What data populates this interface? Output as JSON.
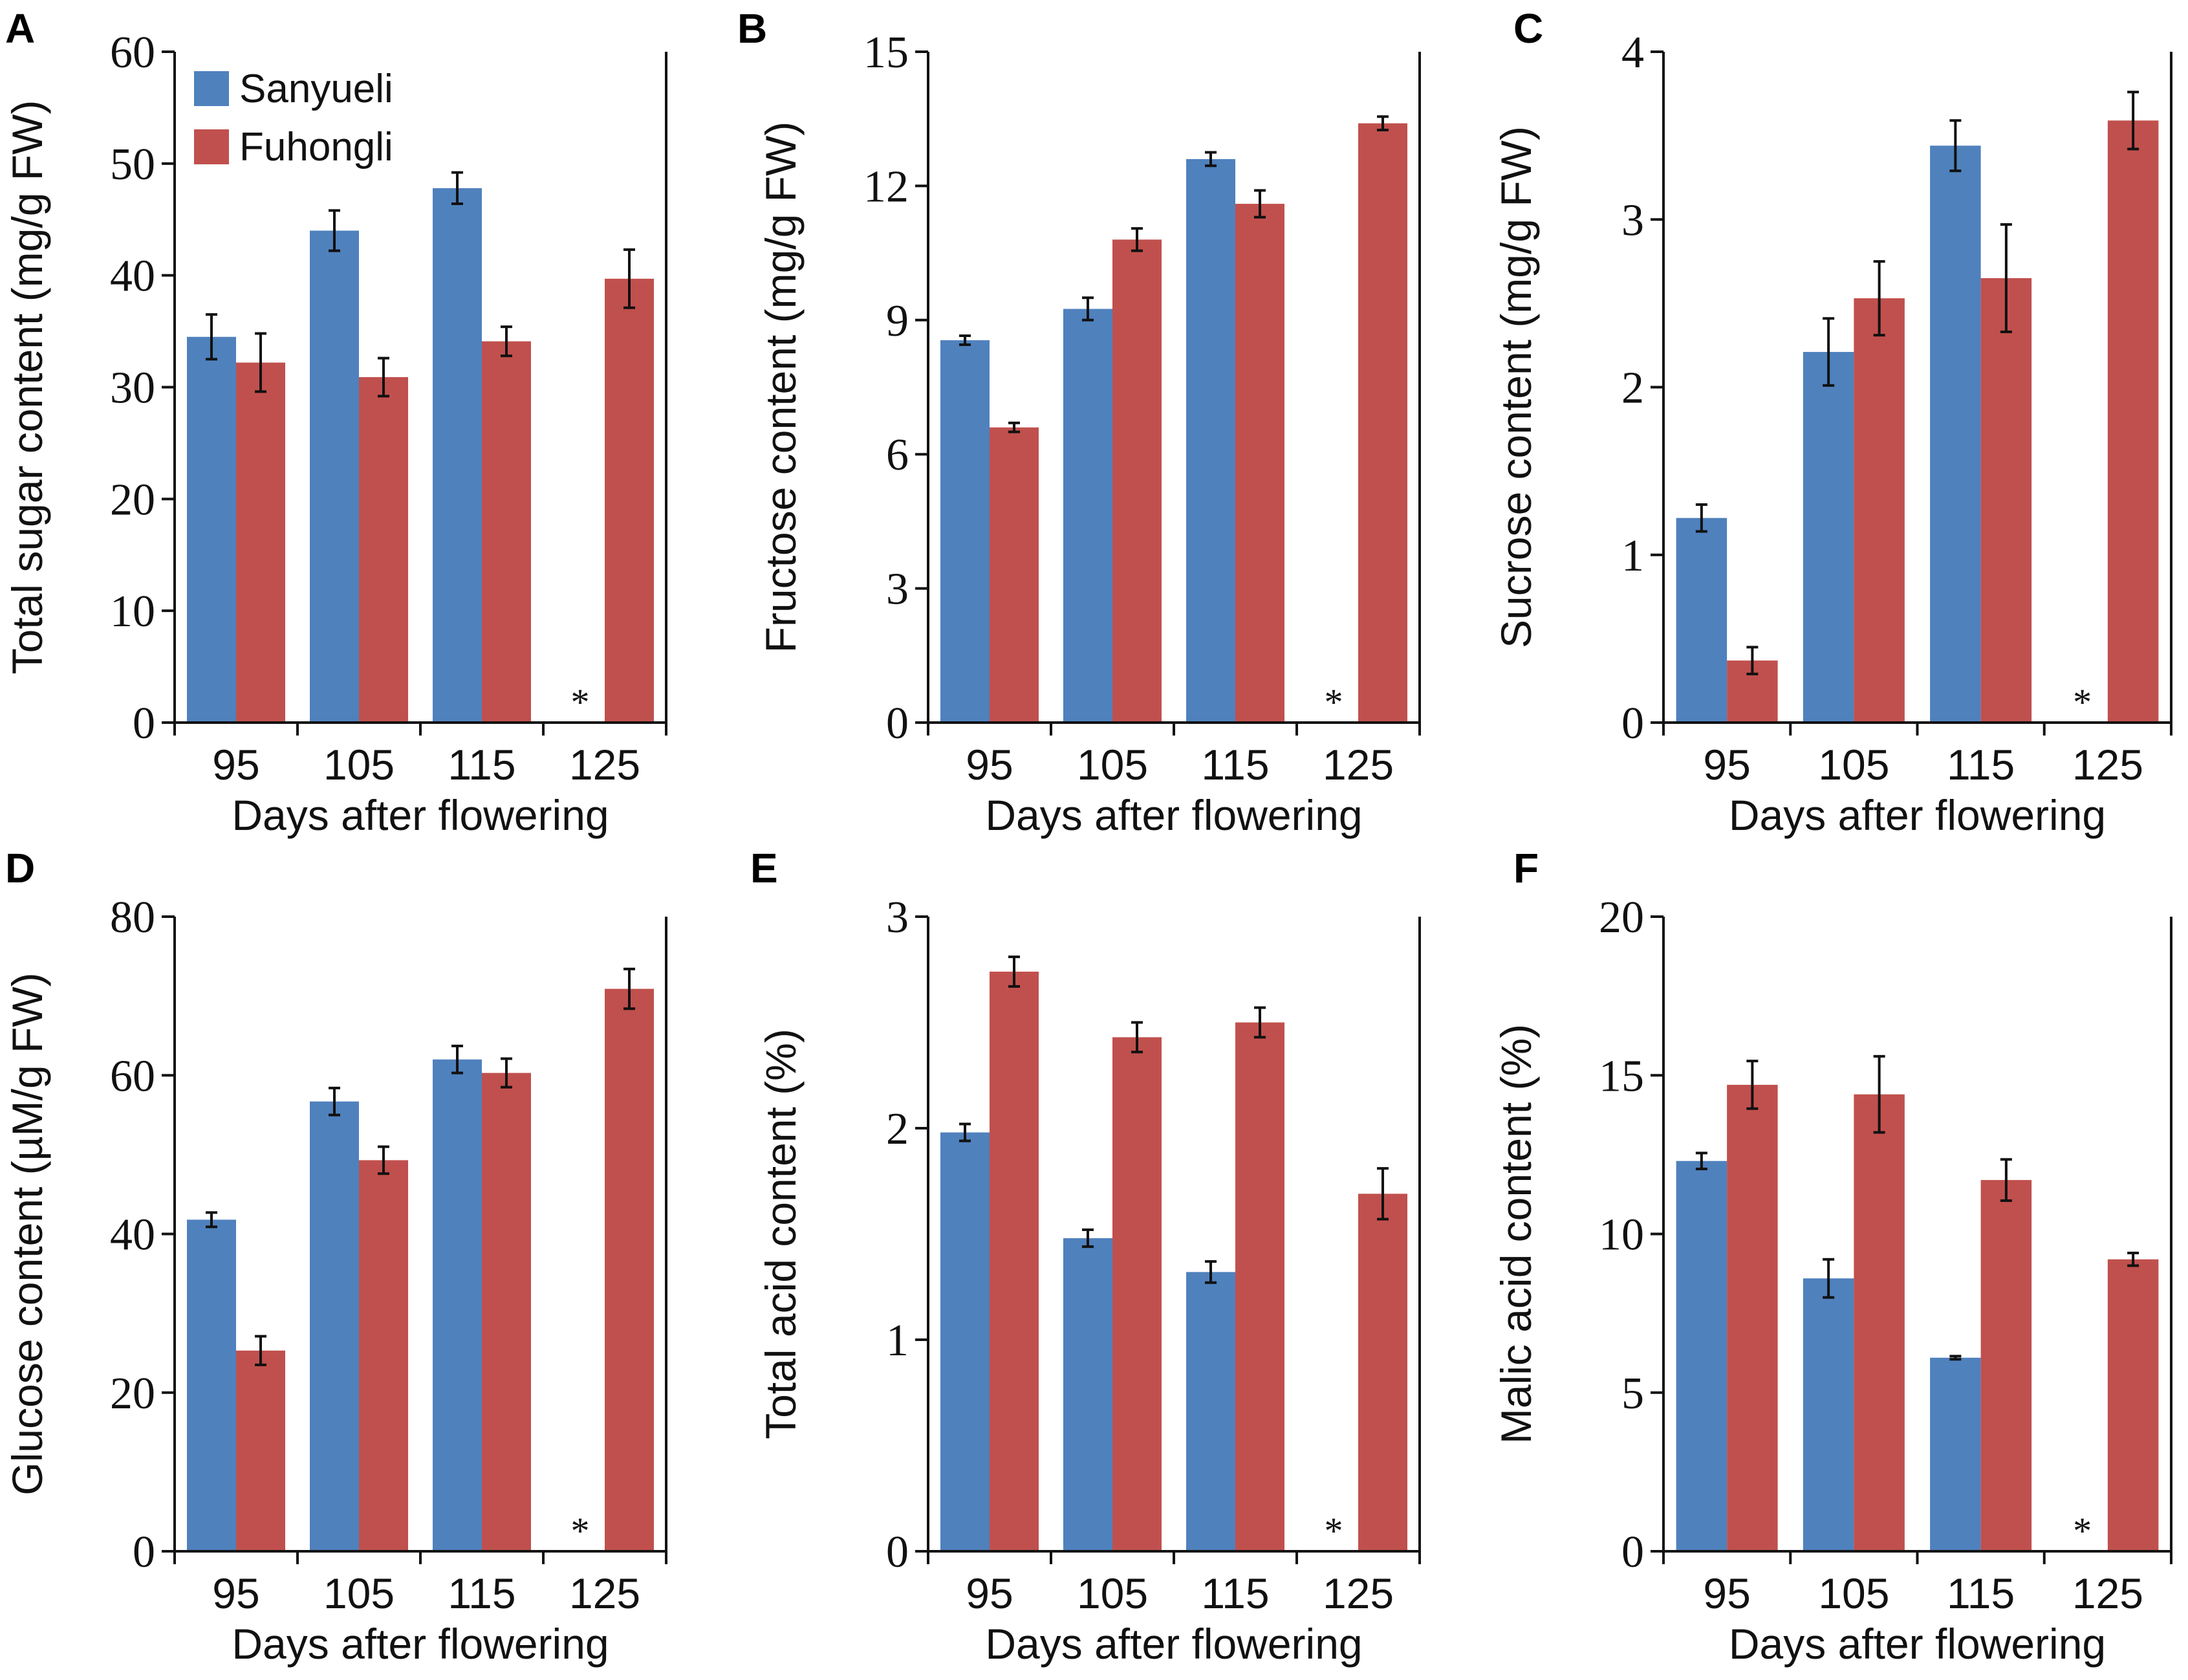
{
  "colors": {
    "Sanyueli": "#4f81bd",
    "Fuhongli": "#c0504d",
    "axis": "#111111",
    "errorbar": "#111111"
  },
  "legend": [
    "Sanyueli",
    "Fuhongli"
  ],
  "missing_marker": "*",
  "chart_data": [
    {
      "panel": "A",
      "type": "bar",
      "title": "",
      "xlabel": "Days after flowering",
      "ylabel": "Total sugar content (mg/g FW)",
      "categories": [
        "95",
        "105",
        "115",
        "125"
      ],
      "ylim": [
        0,
        60
      ],
      "yticks": [
        0,
        10,
        20,
        30,
        40,
        50,
        60
      ],
      "series": [
        {
          "name": "Sanyueli",
          "values": [
            34.5,
            44.0,
            47.8,
            null
          ],
          "errors": [
            2.0,
            1.8,
            1.4,
            null
          ]
        },
        {
          "name": "Fuhongli",
          "values": [
            32.2,
            30.9,
            34.1,
            39.7
          ],
          "errors": [
            2.6,
            1.7,
            1.3,
            2.6
          ]
        }
      ],
      "annotations": [
        {
          "category": "125",
          "series": "Sanyueli",
          "text": "*"
        }
      ]
    },
    {
      "panel": "B",
      "type": "bar",
      "title": "",
      "xlabel": "Days after flowering",
      "ylabel": "Fructose content (mg/g FW)",
      "categories": [
        "95",
        "105",
        "115",
        "125"
      ],
      "ylim": [
        0,
        15
      ],
      "yticks": [
        0,
        3,
        6,
        9,
        12,
        15
      ],
      "series": [
        {
          "name": "Sanyueli",
          "values": [
            8.55,
            9.25,
            12.6,
            null
          ],
          "errors": [
            0.1,
            0.25,
            0.15,
            null
          ]
        },
        {
          "name": "Fuhongli",
          "values": [
            6.6,
            10.8,
            11.6,
            13.4
          ],
          "errors": [
            0.1,
            0.25,
            0.3,
            0.15
          ]
        }
      ],
      "annotations": [
        {
          "category": "125",
          "series": "Sanyueli",
          "text": "*"
        }
      ]
    },
    {
      "panel": "C",
      "type": "bar",
      "title": "",
      "xlabel": "Days after flowering",
      "ylabel": "Sucrose content (mg/g FW)",
      "categories": [
        "95",
        "105",
        "115",
        "125"
      ],
      "ylim": [
        0,
        4
      ],
      "yticks": [
        0,
        1,
        2,
        3,
        4
      ],
      "series": [
        {
          "name": "Sanyueli",
          "values": [
            1.22,
            2.21,
            3.44,
            null
          ],
          "errors": [
            0.08,
            0.2,
            0.15,
            null
          ]
        },
        {
          "name": "Fuhongli",
          "values": [
            0.37,
            2.53,
            2.65,
            3.59
          ],
          "errors": [
            0.08,
            0.22,
            0.32,
            0.17
          ]
        }
      ],
      "annotations": [
        {
          "category": "125",
          "series": "Sanyueli",
          "text": "*"
        }
      ]
    },
    {
      "panel": "D",
      "type": "bar",
      "title": "",
      "xlabel": "Days after flowering",
      "ylabel": "Glucose content (µM/g FW)",
      "categories": [
        "95",
        "105",
        "115",
        "125"
      ],
      "ylim": [
        0,
        80
      ],
      "yticks": [
        0,
        20,
        40,
        60,
        80
      ],
      "series": [
        {
          "name": "Sanyueli",
          "values": [
            41.8,
            56.7,
            62.0,
            null
          ],
          "errors": [
            0.9,
            1.7,
            1.7,
            null
          ]
        },
        {
          "name": "Fuhongli",
          "values": [
            25.3,
            49.3,
            60.3,
            70.9
          ],
          "errors": [
            1.8,
            1.7,
            1.8,
            2.5
          ]
        }
      ],
      "annotations": [
        {
          "category": "125",
          "series": "Sanyueli",
          "text": "*"
        }
      ]
    },
    {
      "panel": "E",
      "type": "bar",
      "title": "",
      "xlabel": "Days after flowering",
      "ylabel": "Total acid content (%)",
      "categories": [
        "95",
        "105",
        "115",
        "125"
      ],
      "ylim": [
        0,
        3
      ],
      "yticks": [
        0,
        1,
        2,
        3
      ],
      "series": [
        {
          "name": "Sanyueli",
          "values": [
            1.98,
            1.48,
            1.32,
            null
          ],
          "errors": [
            0.04,
            0.04,
            0.05,
            null
          ]
        },
        {
          "name": "Fuhongli",
          "values": [
            2.74,
            2.43,
            2.5,
            1.69
          ],
          "errors": [
            0.07,
            0.07,
            0.07,
            0.12
          ]
        }
      ],
      "annotations": [
        {
          "category": "125",
          "series": "Sanyueli",
          "text": "*"
        }
      ]
    },
    {
      "panel": "F",
      "type": "bar",
      "title": "",
      "xlabel": "Days after flowering",
      "ylabel": "Malic acid content (%)",
      "categories": [
        "95",
        "105",
        "115",
        "125"
      ],
      "ylim": [
        0,
        20
      ],
      "yticks": [
        0,
        5,
        10,
        15,
        20
      ],
      "series": [
        {
          "name": "Sanyueli",
          "values": [
            12.3,
            8.6,
            6.1,
            null
          ],
          "errors": [
            0.25,
            0.6,
            0.05,
            null
          ]
        },
        {
          "name": "Fuhongli",
          "values": [
            14.7,
            14.4,
            11.7,
            9.2
          ],
          "errors": [
            0.75,
            1.2,
            0.65,
            0.2
          ]
        }
      ],
      "annotations": [
        {
          "category": "125",
          "series": "Sanyueli",
          "text": "*"
        }
      ]
    }
  ]
}
